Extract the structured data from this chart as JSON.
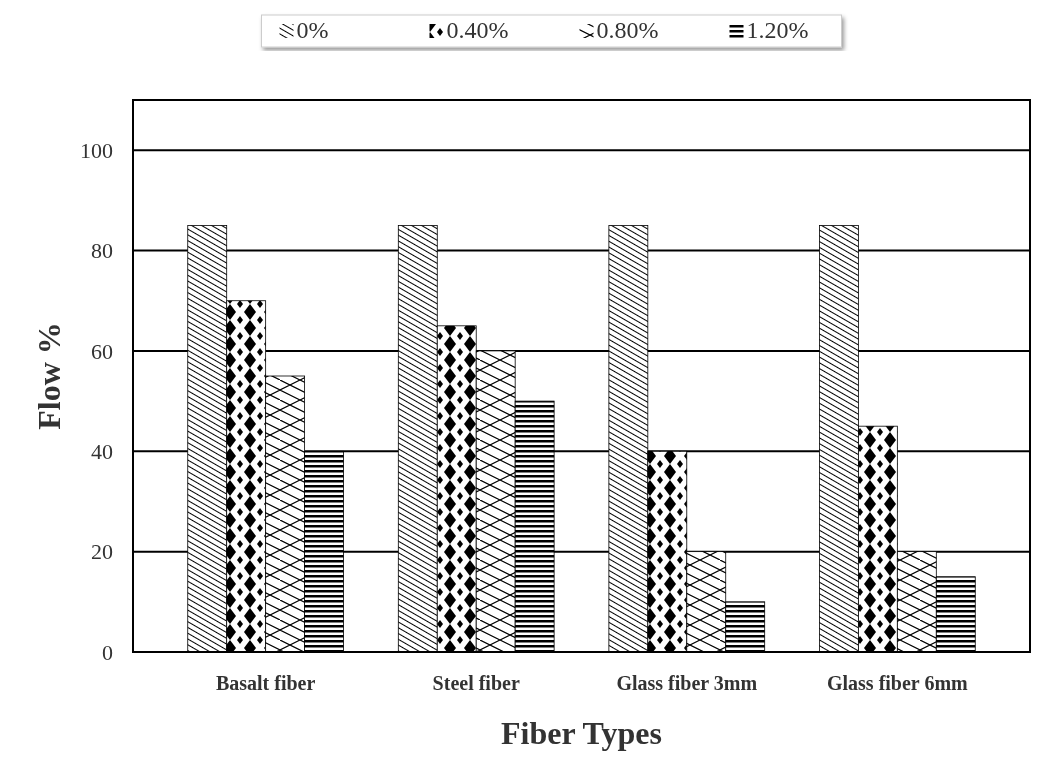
{
  "chart_data": {
    "type": "bar",
    "xlabel": "Fiber Types",
    "ylabel": "Flow %",
    "categories": [
      "Basalt fiber",
      "Steel fiber",
      "Glass fiber 3mm",
      "Glass fiber 6mm"
    ],
    "series": [
      {
        "name": "0%",
        "color": "#000000",
        "values": [
          85,
          85,
          85,
          85
        ]
      },
      {
        "name": "0.40%",
        "color": "#000000",
        "values": [
          70,
          65,
          40,
          45
        ]
      },
      {
        "name": "0.80%",
        "color": "#000000",
        "values": [
          55,
          60,
          20,
          20
        ]
      },
      {
        "name": "1.20%",
        "color": "#000000",
        "values": [
          40,
          50,
          10,
          15
        ]
      }
    ],
    "ylim": [
      0,
      110
    ],
    "yticks": [
      0,
      20,
      40,
      60,
      80,
      100
    ],
    "grid": "y",
    "legend": "top"
  }
}
